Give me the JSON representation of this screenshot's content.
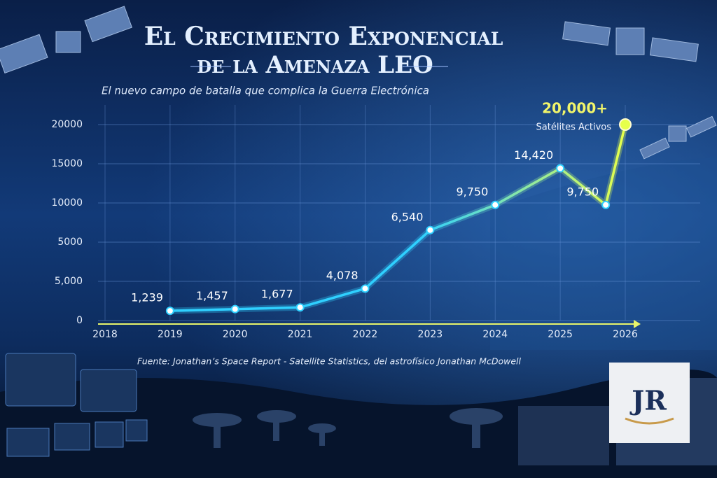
{
  "chart_data": {
    "type": "line",
    "title": [
      "El Crecimiento Exponencial",
      "de la Amenaza LEO"
    ],
    "subtitle": "El nuevo campo de batalla que complica la Guerra Electrónica",
    "x": [
      2019,
      2020,
      2021,
      2022,
      2023,
      2024,
      2025,
      2025.7,
      2026
    ],
    "values": [
      1239,
      1457,
      1677,
      4078,
      6540,
      9750,
      14420,
      9750,
      20000
    ],
    "value_labels": [
      "1,239",
      "1,457",
      "1,677",
      "4,078",
      "6,540",
      "9,750",
      "14,420",
      "9,750",
      "20,000+"
    ],
    "annotation": "Satélites Activos",
    "colors": [
      "#2fd0ff",
      "#e6ff4a"
    ],
    "xlim": [
      2018,
      2026
    ],
    "xticks": [
      2018,
      2019,
      2020,
      2021,
      2022,
      2023,
      2024,
      2025,
      2026
    ],
    "yticks": [
      0,
      {
        "value": 5000,
        "label": "5,000"
      },
      5000,
      10000,
      15000,
      20000
    ],
    "ylim": [
      0,
      20000
    ],
    "grid": true,
    "source": "Fuente: Jonathan’s Space Report - Satellite Statistics, del astrofísico Jonathan McDowell"
  },
  "logo": "JR"
}
